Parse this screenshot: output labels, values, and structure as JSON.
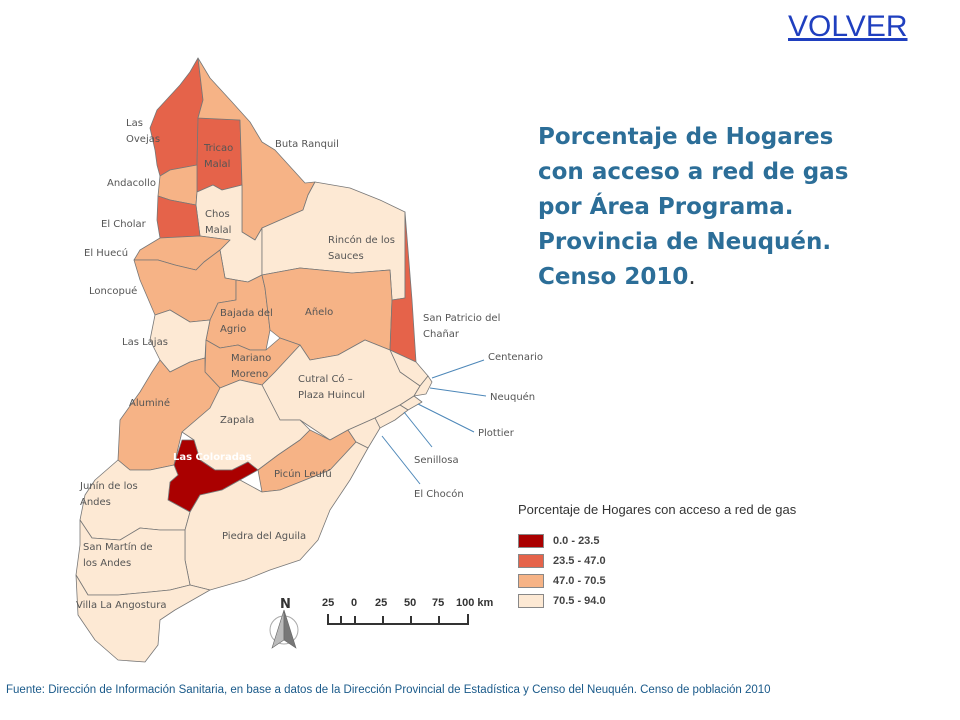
{
  "nav": {
    "back_label": "VOLVER"
  },
  "title": {
    "main": "Porcentaje de Hogares con acceso a red de gas por Área Programa. Provincia de Neuquén. Censo 2010",
    "end": "."
  },
  "legend": {
    "title": "Porcentaje de Hogares con acceso a red de gas",
    "classes": [
      {
        "label": "0.0 - 23.5",
        "color": "#aa0000"
      },
      {
        "label": "23.5 - 47.0",
        "color": "#e5634a"
      },
      {
        "label": "47.0 - 70.5",
        "color": "#f6b386"
      },
      {
        "label": "70.5 - 94.0",
        "color": "#fde9d4"
      }
    ]
  },
  "areas": [
    {
      "name": "Las Ovejas",
      "class": "23.5 - 47.0"
    },
    {
      "name": "Tricao Malal",
      "class": "23.5 - 47.0"
    },
    {
      "name": "Buta Ranquil",
      "class": "47.0 - 70.5"
    },
    {
      "name": "Andacollo",
      "class": "47.0 - 70.5"
    },
    {
      "name": "Chos Malal",
      "class": "70.5 - 94.0"
    },
    {
      "name": "El Cholar",
      "class": "23.5 - 47.0"
    },
    {
      "name": "El Huecú",
      "class": "47.0 - 70.5"
    },
    {
      "name": "Rincón de los Sauces",
      "class": "70.5 - 94.0"
    },
    {
      "name": "Loncopué",
      "class": "47.0 - 70.5"
    },
    {
      "name": "Bajada del Agrio",
      "class": "47.0 - 70.5"
    },
    {
      "name": "Añelo",
      "class": "47.0 - 70.5"
    },
    {
      "name": "San Patricio del Chañar",
      "class": "23.5 - 47.0"
    },
    {
      "name": "Las Lajas",
      "class": "70.5 - 94.0"
    },
    {
      "name": "Mariano Moreno",
      "class": "47.0 - 70.5"
    },
    {
      "name": "Centenario",
      "class": "70.5 - 94.0"
    },
    {
      "name": "Cutral Có – Plaza Huincul",
      "class": "70.5 - 94.0"
    },
    {
      "name": "Neuquén",
      "class": "70.5 - 94.0"
    },
    {
      "name": "Aluminé",
      "class": "47.0 - 70.5"
    },
    {
      "name": "Zapala",
      "class": "70.5 - 94.0"
    },
    {
      "name": "Plottier",
      "class": "70.5 - 94.0"
    },
    {
      "name": "Las Coloradas",
      "class": "0.0 - 23.5"
    },
    {
      "name": "Senillosa",
      "class": "70.5 - 94.0"
    },
    {
      "name": "Picún Leufú",
      "class": "47.0 - 70.5"
    },
    {
      "name": "Junín de los Andes",
      "class": "70.5 - 94.0"
    },
    {
      "name": "El Chocón",
      "class": "70.5 - 94.0"
    },
    {
      "name": "Piedra del Aguila",
      "class": "70.5 - 94.0"
    },
    {
      "name": "San Martín de los Andes",
      "class": "70.5 - 94.0"
    },
    {
      "name": "Villa La Angostura",
      "class": "70.5 - 94.0"
    }
  ],
  "map_labels": {
    "las_ovejas": [
      "Las",
      "Ovejas"
    ],
    "tricao": [
      "Tricao",
      "Malal"
    ],
    "buta": "Buta Ranquil",
    "andacollo": "Andacollo",
    "chos": [
      "Chos",
      "Malal"
    ],
    "cholar": "El Cholar",
    "huecu": "El Huecú",
    "rincon": [
      "Rincón de los",
      "Sauces"
    ],
    "loncopue": "Loncopué",
    "bajada": [
      "Bajada del",
      "Agrio"
    ],
    "anelo": "Añelo",
    "chanar": [
      "San Patricio del",
      "Chañar"
    ],
    "lajas": "Las Lajas",
    "mariano": [
      "Mariano",
      "Moreno"
    ],
    "centenario": "Centenario",
    "cutral": [
      "Cutral Có –",
      "Plaza Huincul"
    ],
    "neuquen": "Neuquén",
    "alumine": "Aluminé",
    "zapala": "Zapala",
    "plottier": "Plottier",
    "coloradas": "Las Coloradas",
    "senillosa": "Senillosa",
    "picun": "Picún Leufú",
    "junin": [
      "Junín de los",
      "Andes"
    ],
    "chocon": "El Chocón",
    "piedra": "Piedra del Aguila",
    "sanmartin": [
      "San Martín de",
      "los Andes"
    ],
    "villa": "Villa La Angostura"
  },
  "north": {
    "label": "N"
  },
  "scale": {
    "ticks": [
      "25",
      "0",
      "25",
      "50",
      "75",
      "100 km"
    ]
  },
  "source": "Fuente: Dirección de Información Sanitaria,  en base a datos de la Dirección Provincial de Estadística y Censo del Neuquén. Censo de población 2010"
}
